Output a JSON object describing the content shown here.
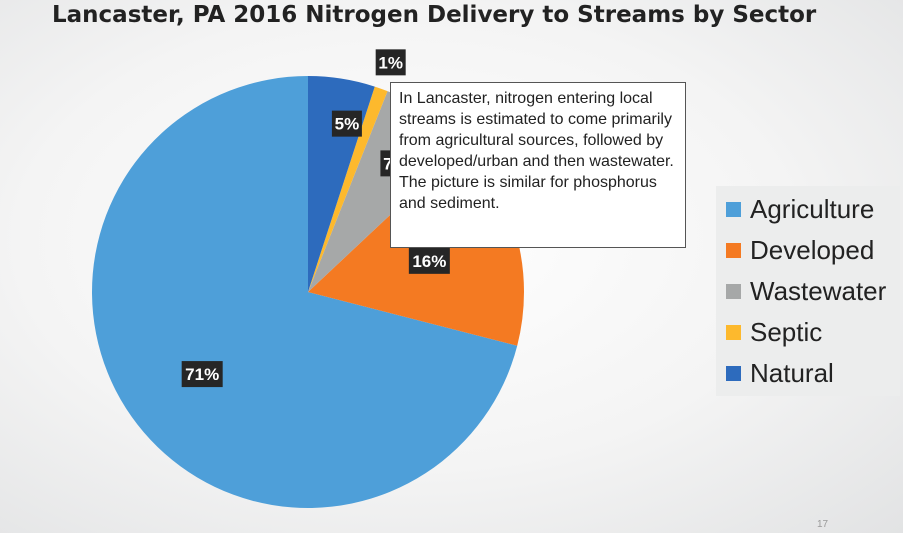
{
  "title": "Lancaster, PA 2016 Nitrogen Delivery to Streams by Sector",
  "chart_data": {
    "type": "pie",
    "title": "Lancaster, PA 2016 Nitrogen Delivery to Streams by Sector",
    "slices": [
      {
        "label": "Agriculture",
        "value": 71,
        "display": "71%",
        "color": "#4e9fd9"
      },
      {
        "label": "Developed",
        "value": 16,
        "display": "16%",
        "color": "#f47a22"
      },
      {
        "label": "Wastewater",
        "value": 7,
        "display": "7%",
        "color": "#a6a8a8"
      },
      {
        "label": "Septic",
        "value": 1,
        "display": "1%",
        "color": "#fdb92d"
      },
      {
        "label": "Natural",
        "value": 5,
        "display": "5%",
        "color": "#2d6bbd"
      }
    ],
    "legend_position": "right"
  },
  "callout": "In Lancaster, nitrogen entering local streams is estimated to come primarily from agricultural sources, followed by developed/urban and then wastewater. The picture is similar for phosphorus and sediment.",
  "page_number": "17"
}
